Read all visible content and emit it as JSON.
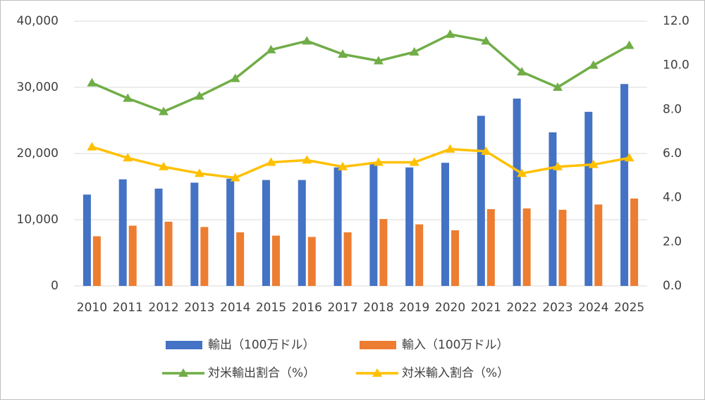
{
  "chart_data": {
    "type": "bar",
    "categories": [
      "2010",
      "2011",
      "2012",
      "2013",
      "2014",
      "2015",
      "2016",
      "2017",
      "2018",
      "2019",
      "2020",
      "2021",
      "2022",
      "2023",
      "2024",
      "2025"
    ],
    "series": [
      {
        "name": "輸出（100万ドル）",
        "type": "bar",
        "color": "#4472c4",
        "values": [
          13800,
          16100,
          14700,
          15600,
          16200,
          16000,
          16000,
          17900,
          18600,
          17900,
          18600,
          25700,
          28300,
          23200,
          26300,
          30500
        ]
      },
      {
        "name": "輸入（100万ドル）",
        "type": "bar",
        "color": "#ed7d31",
        "values": [
          7500,
          9100,
          9700,
          8900,
          8100,
          7600,
          7400,
          8100,
          10100,
          9300,
          8400,
          11600,
          11700,
          11500,
          12300,
          13200
        ]
      },
      {
        "name": "対米輸出割合（%）",
        "type": "line",
        "axis": "y2",
        "color": "#70ad47",
        "values": [
          9.2,
          8.5,
          7.9,
          8.6,
          9.4,
          10.7,
          11.1,
          10.5,
          10.2,
          10.6,
          11.4,
          11.1,
          9.7,
          9.0,
          10.0,
          10.9
        ]
      },
      {
        "name": "対米輸入割合（%）",
        "type": "line",
        "axis": "y2",
        "color": "#ffc000",
        "values": [
          6.3,
          5.8,
          5.4,
          5.1,
          4.9,
          5.6,
          5.7,
          5.4,
          5.6,
          5.6,
          6.2,
          6.1,
          5.1,
          5.4,
          5.5,
          5.8
        ]
      }
    ],
    "ylim": [
      0,
      40000
    ],
    "yticks": [
      0,
      {
        "value": 10000,
        "label": "10,000"
      },
      {
        "value": 20000,
        "label": "20,000"
      },
      {
        "value": 30000,
        "label": "30,000"
      },
      {
        "value": 40000,
        "label": "40,000"
      }
    ],
    "y2lim": [
      0,
      12
    ],
    "y2ticks": [
      {
        "value": 0,
        "label": "0.0"
      },
      {
        "value": 2,
        "label": "2.0"
      },
      {
        "value": 4,
        "label": "4.0"
      },
      {
        "value": 6,
        "label": "6.0"
      },
      {
        "value": 8,
        "label": "8.0"
      },
      {
        "value": 10,
        "label": "10.0"
      },
      {
        "value": 12,
        "label": "12.0"
      }
    ],
    "grid": true,
    "legend": "bottom"
  }
}
